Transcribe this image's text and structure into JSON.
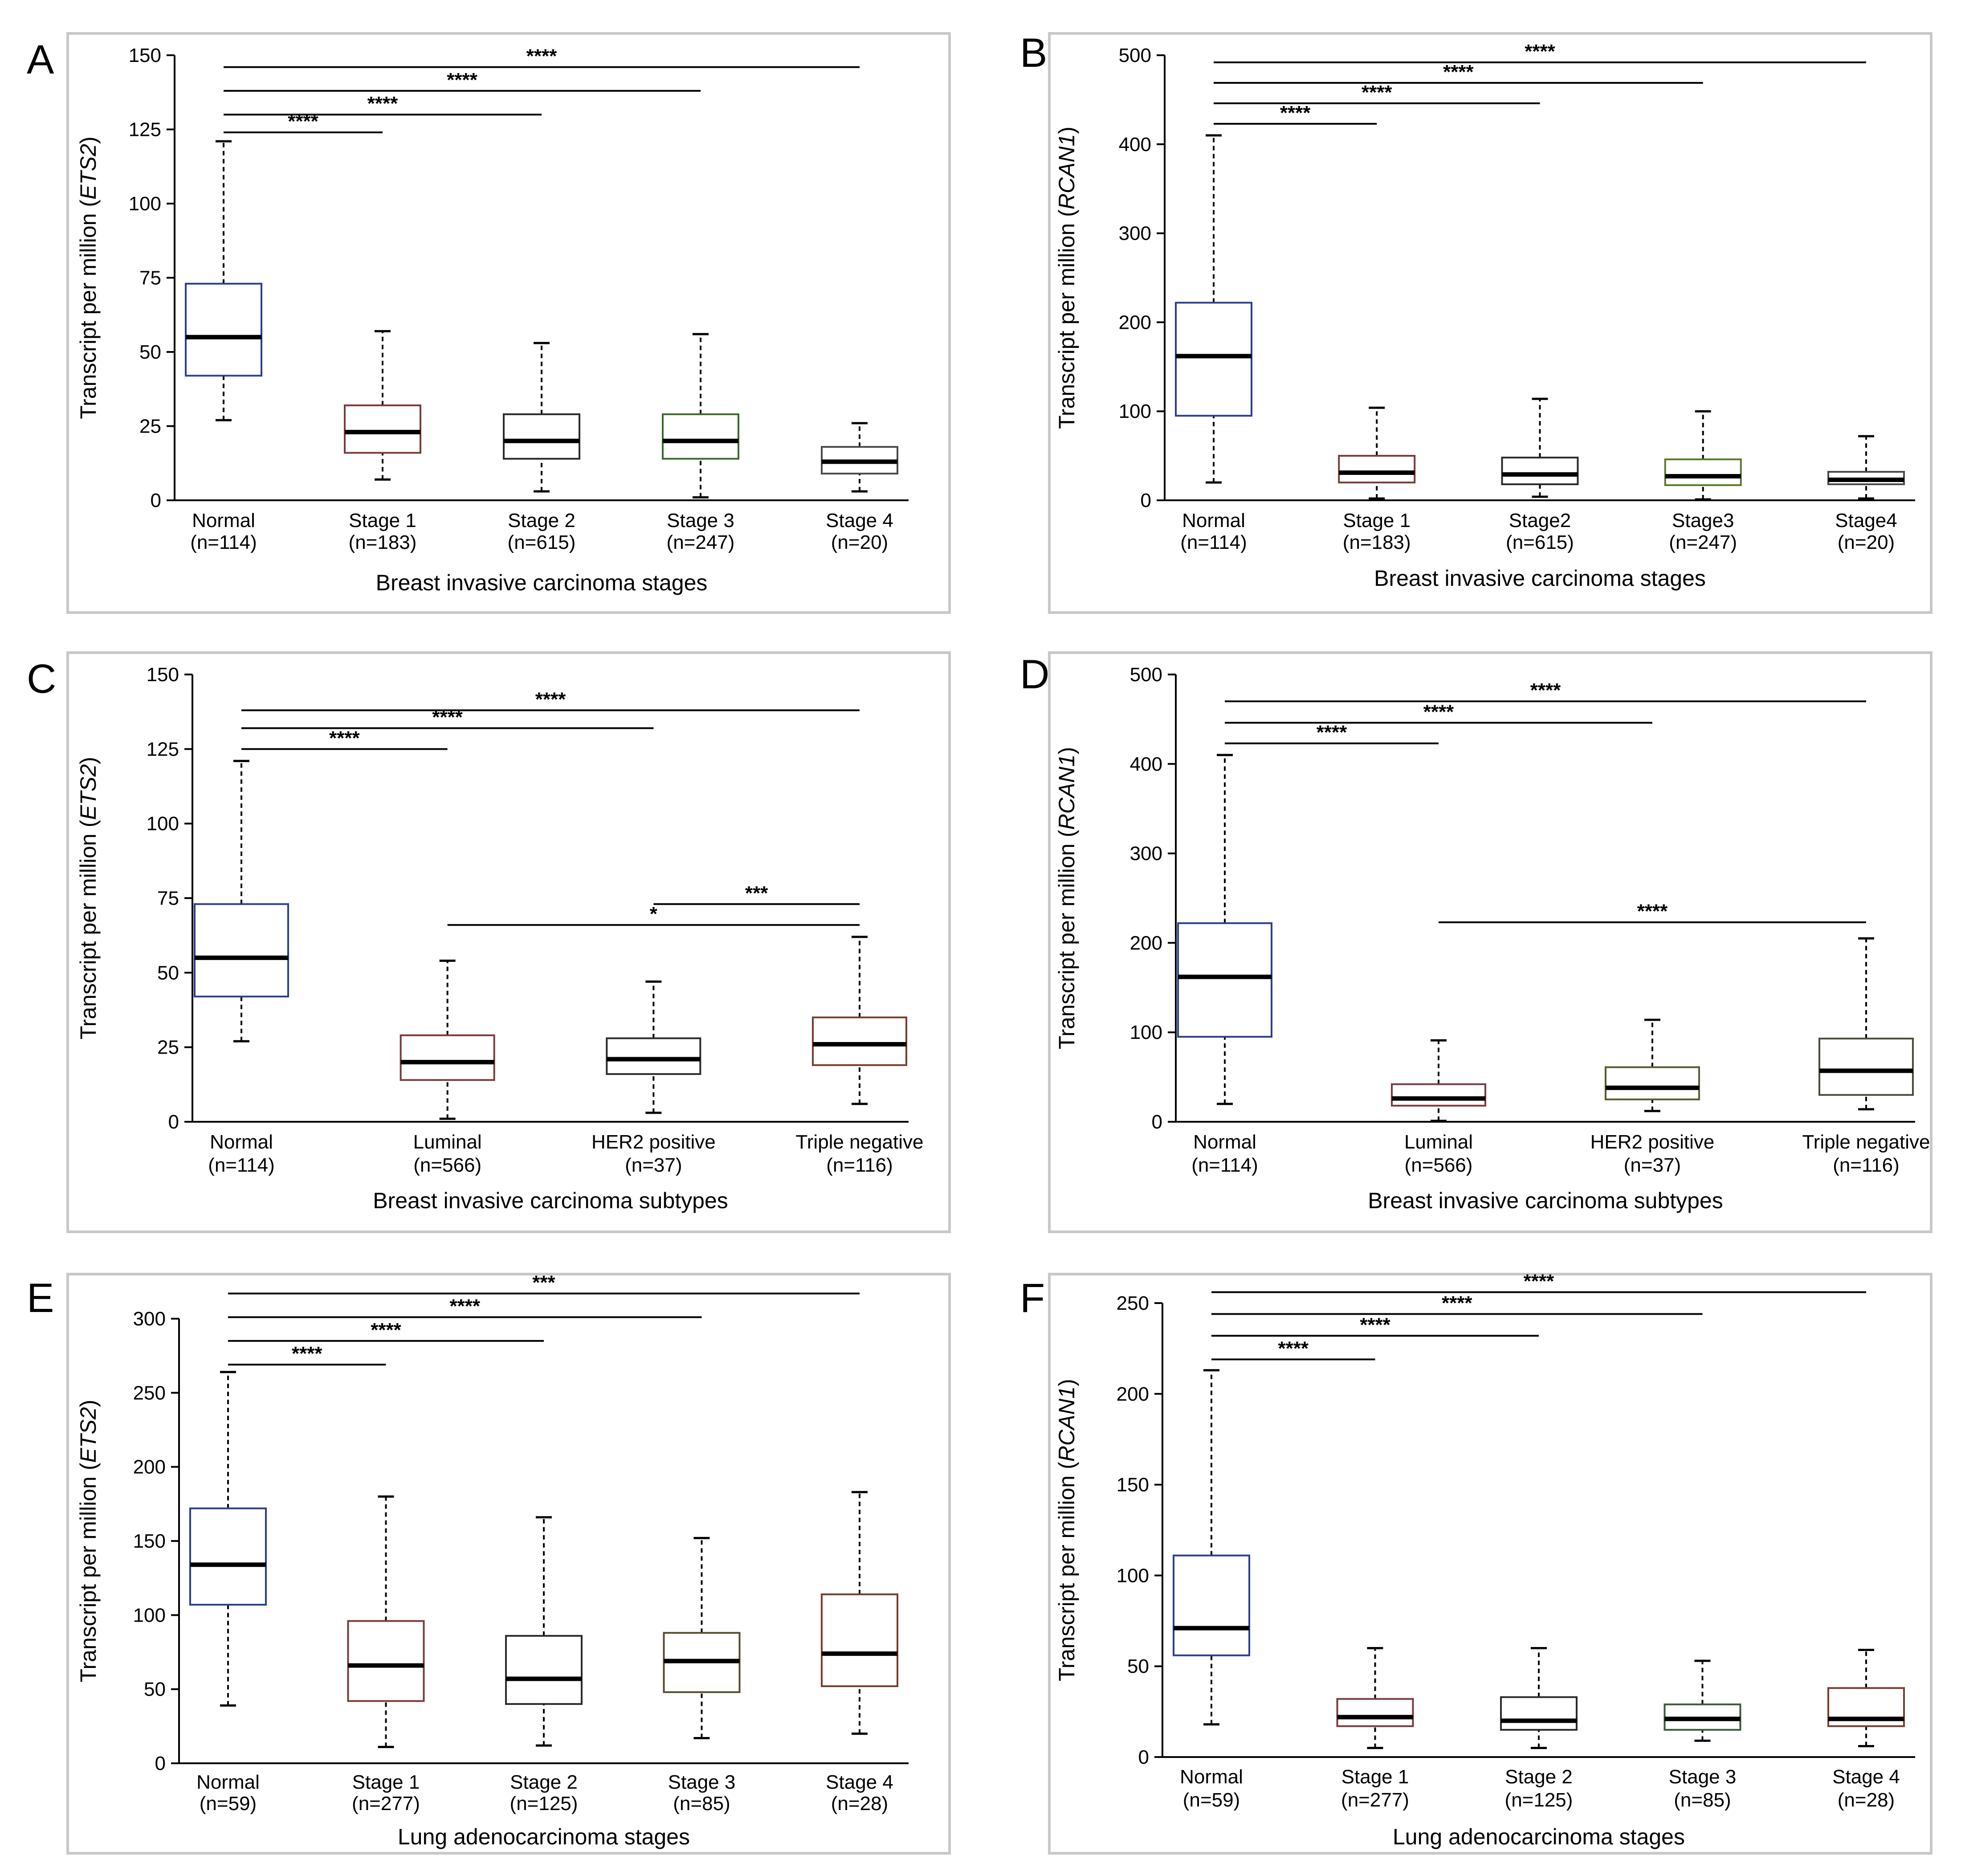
{
  "chart_data": [
    {
      "type": "boxplot",
      "panel": "A",
      "ylabel": "Transcript per million (ETS2)",
      "xlabel": "Breast invasive carcinoma stages",
      "ylim": [
        0,
        150
      ],
      "yticks": [
        0,
        25,
        50,
        75,
        100,
        125,
        150
      ],
      "categories": [
        {
          "name": "Normal",
          "n": "(n=114)",
          "min": 27,
          "q1": 42,
          "median": 55,
          "q3": 73,
          "max": 121,
          "color": "#2b3f8f"
        },
        {
          "name": "Stage 1",
          "n": "(n=183)",
          "min": 7,
          "q1": 16,
          "median": 23,
          "q3": 32,
          "max": 57,
          "color": "#7a3b3b"
        },
        {
          "name": "Stage 2",
          "n": "(n=615)",
          "min": 3,
          "q1": 14,
          "median": 20,
          "q3": 29,
          "max": 53,
          "color": "#2b2b2b"
        },
        {
          "name": "Stage 3",
          "n": "(n=247)",
          "min": 1,
          "q1": 14,
          "median": 20,
          "q3": 29,
          "max": 56,
          "color": "#3a6b2b"
        },
        {
          "name": "Stage 4",
          "n": "(n=20)",
          "min": 3,
          "q1": 9,
          "median": 13,
          "q3": 18,
          "max": 26,
          "color": "#4a4a4a"
        }
      ],
      "significance": [
        {
          "from": 0,
          "to": 1,
          "y": 124,
          "label": "****"
        },
        {
          "from": 0,
          "to": 2,
          "y": 130,
          "label": "****"
        },
        {
          "from": 0,
          "to": 3,
          "y": 138,
          "label": "****"
        },
        {
          "from": 0,
          "to": 4,
          "y": 146,
          "label": "****"
        }
      ]
    },
    {
      "type": "boxplot",
      "panel": "B",
      "ylabel": "Transcript per million (RCAN1)",
      "xlabel": "Breast invasive carcinoma stages",
      "ylim": [
        0,
        500
      ],
      "yticks": [
        0,
        100,
        200,
        300,
        400,
        500
      ],
      "categories": [
        {
          "name": "Normal",
          "n": "(n=114)",
          "min": 20,
          "q1": 95,
          "median": 162,
          "q3": 222,
          "max": 410,
          "color": "#2b3f8f"
        },
        {
          "name": "Stage 1",
          "n": "(n=183)",
          "min": 2,
          "q1": 20,
          "median": 31,
          "q3": 50,
          "max": 104,
          "color": "#7a3b3b"
        },
        {
          "name": "Stage2",
          "n": "(n=615)",
          "min": 4,
          "q1": 18,
          "median": 29,
          "q3": 48,
          "max": 114,
          "color": "#2b2b2b"
        },
        {
          "name": "Stage3",
          "n": "(n=247)",
          "min": 1,
          "q1": 17,
          "median": 27,
          "q3": 46,
          "max": 100,
          "color": "#5a7a2b"
        },
        {
          "name": "Stage4",
          "n": "(n=20)",
          "min": 2,
          "q1": 18,
          "median": 23,
          "q3": 32,
          "max": 72,
          "color": "#4a4a4a"
        }
      ],
      "significance": [
        {
          "from": 0,
          "to": 1,
          "y": 423,
          "label": "****"
        },
        {
          "from": 0,
          "to": 2,
          "y": 446,
          "label": "****"
        },
        {
          "from": 0,
          "to": 3,
          "y": 469,
          "label": "****"
        },
        {
          "from": 0,
          "to": 4,
          "y": 492,
          "label": "****"
        }
      ]
    },
    {
      "type": "boxplot",
      "panel": "C",
      "ylabel": "Transcript per million (ETS2)",
      "xlabel": "Breast invasive carcinoma subtypes",
      "ylim": [
        0,
        150
      ],
      "yticks": [
        0,
        25,
        50,
        75,
        100,
        125,
        150
      ],
      "categories": [
        {
          "name": "Normal",
          "n": "(n=114)",
          "min": 27,
          "q1": 42,
          "median": 55,
          "q3": 73,
          "max": 121,
          "color": "#2b3f8f"
        },
        {
          "name": "Luminal",
          "n": "(n=566)",
          "min": 1,
          "q1": 14,
          "median": 20,
          "q3": 29,
          "max": 54,
          "color": "#7a3b3b"
        },
        {
          "name": "HER2 positive",
          "n": "(n=37)",
          "min": 3,
          "q1": 16,
          "median": 21,
          "q3": 28,
          "max": 47,
          "color": "#2b2b2b"
        },
        {
          "name": "Triple negative",
          "n": "(n=116)",
          "min": 6,
          "q1": 19,
          "median": 26,
          "q3": 35,
          "max": 62,
          "color": "#7a3b2b"
        }
      ],
      "significance": [
        {
          "from": 0,
          "to": 1,
          "y": 125,
          "label": "****"
        },
        {
          "from": 0,
          "to": 2,
          "y": 132,
          "label": "****"
        },
        {
          "from": 0,
          "to": 3,
          "y": 138,
          "label": "****"
        },
        {
          "from": 2,
          "to": 3,
          "y": 73,
          "label": "***"
        },
        {
          "from": 1,
          "to": 3,
          "y": 66,
          "label": "*"
        }
      ]
    },
    {
      "type": "boxplot",
      "panel": "D",
      "ylabel": "Transcript per million (RCAN1)",
      "xlabel": "Breast invasive carcinoma subtypes",
      "ylim": [
        0,
        500
      ],
      "yticks": [
        0,
        100,
        200,
        300,
        400,
        500
      ],
      "categories": [
        {
          "name": "Normal",
          "n": "(n=114)",
          "min": 20,
          "q1": 95,
          "median": 162,
          "q3": 222,
          "max": 410,
          "color": "#2b3f8f"
        },
        {
          "name": "Luminal",
          "n": "(n=566)",
          "min": 1,
          "q1": 18,
          "median": 26,
          "q3": 42,
          "max": 91,
          "color": "#7a3b3b"
        },
        {
          "name": "HER2 positive",
          "n": "(n=37)",
          "min": 12,
          "q1": 25,
          "median": 38,
          "q3": 61,
          "max": 114,
          "color": "#5a5a2b"
        },
        {
          "name": "Triple negative",
          "n": "(n=116)",
          "min": 14,
          "q1": 30,
          "median": 57,
          "q3": 93,
          "max": 205,
          "color": "#4a4a3a"
        }
      ],
      "significance": [
        {
          "from": 0,
          "to": 1,
          "y": 423,
          "label": "****"
        },
        {
          "from": 0,
          "to": 2,
          "y": 446,
          "label": "****"
        },
        {
          "from": 0,
          "to": 3,
          "y": 470,
          "label": "****"
        },
        {
          "from": 1,
          "to": 3,
          "y": 223,
          "label": "****"
        }
      ]
    },
    {
      "type": "boxplot",
      "panel": "E",
      "ylabel": "Transcript per million (ETS2)",
      "xlabel": "Lung adenocarcinoma stages",
      "ylim": [
        0,
        300
      ],
      "yticks": [
        0,
        50,
        100,
        150,
        200,
        250,
        300
      ],
      "categories": [
        {
          "name": "Normal",
          "n": "(n=59)",
          "min": 39,
          "q1": 107,
          "median": 134,
          "q3": 172,
          "max": 264,
          "color": "#2b3f8f"
        },
        {
          "name": "Stage 1",
          "n": "(n=277)",
          "min": 11,
          "q1": 42,
          "median": 66,
          "q3": 96,
          "max": 180,
          "color": "#7a3b3b"
        },
        {
          "name": "Stage 2",
          "n": "(n=125)",
          "min": 12,
          "q1": 40,
          "median": 57,
          "q3": 86,
          "max": 166,
          "color": "#2b2b2b"
        },
        {
          "name": "Stage 3",
          "n": "(n=85)",
          "min": 17,
          "q1": 48,
          "median": 69,
          "q3": 88,
          "max": 152,
          "color": "#5a4a2b"
        },
        {
          "name": "Stage 4",
          "n": "(n=28)",
          "min": 20,
          "q1": 52,
          "median": 74,
          "q3": 114,
          "max": 183,
          "color": "#7a3b2b"
        }
      ],
      "significance": [
        {
          "from": 0,
          "to": 1,
          "y": 269,
          "label": "****"
        },
        {
          "from": 0,
          "to": 2,
          "y": 285,
          "label": "****"
        },
        {
          "from": 0,
          "to": 3,
          "y": 301,
          "label": "****"
        },
        {
          "from": 0,
          "to": 4,
          "y": 317,
          "label": "***"
        }
      ]
    },
    {
      "type": "boxplot",
      "panel": "F",
      "ylabel": "Transcript per million (RCAN1)",
      "xlabel": "Lung adenocarcinoma stages",
      "ylim": [
        0,
        250
      ],
      "yticks": [
        0,
        50,
        100,
        150,
        200,
        250
      ],
      "categories": [
        {
          "name": "Normal",
          "n": "(n=59)",
          "min": 18,
          "q1": 56,
          "median": 71,
          "q3": 111,
          "max": 213,
          "color": "#2b3f8f"
        },
        {
          "name": "Stage 1",
          "n": "(n=277)",
          "min": 5,
          "q1": 17,
          "median": 22,
          "q3": 32,
          "max": 60,
          "color": "#7a3b3b"
        },
        {
          "name": "Stage 2",
          "n": "(n=125)",
          "min": 5,
          "q1": 15,
          "median": 20,
          "q3": 33,
          "max": 60,
          "color": "#2b2b2b"
        },
        {
          "name": "Stage 3",
          "n": "(n=85)",
          "min": 9,
          "q1": 15,
          "median": 21,
          "q3": 29,
          "max": 53,
          "color": "#3a5a3a"
        },
        {
          "name": "Stage 4",
          "n": "(n=28)",
          "min": 6,
          "q1": 17,
          "median": 21,
          "q3": 38,
          "max": 59,
          "color": "#7a3b2b"
        }
      ],
      "significance": [
        {
          "from": 0,
          "to": 1,
          "y": 219,
          "label": "****"
        },
        {
          "from": 0,
          "to": 2,
          "y": 232,
          "label": "****"
        },
        {
          "from": 0,
          "to": 3,
          "y": 244,
          "label": "****"
        },
        {
          "from": 0,
          "to": 4,
          "y": 256,
          "label": "****"
        }
      ]
    }
  ]
}
